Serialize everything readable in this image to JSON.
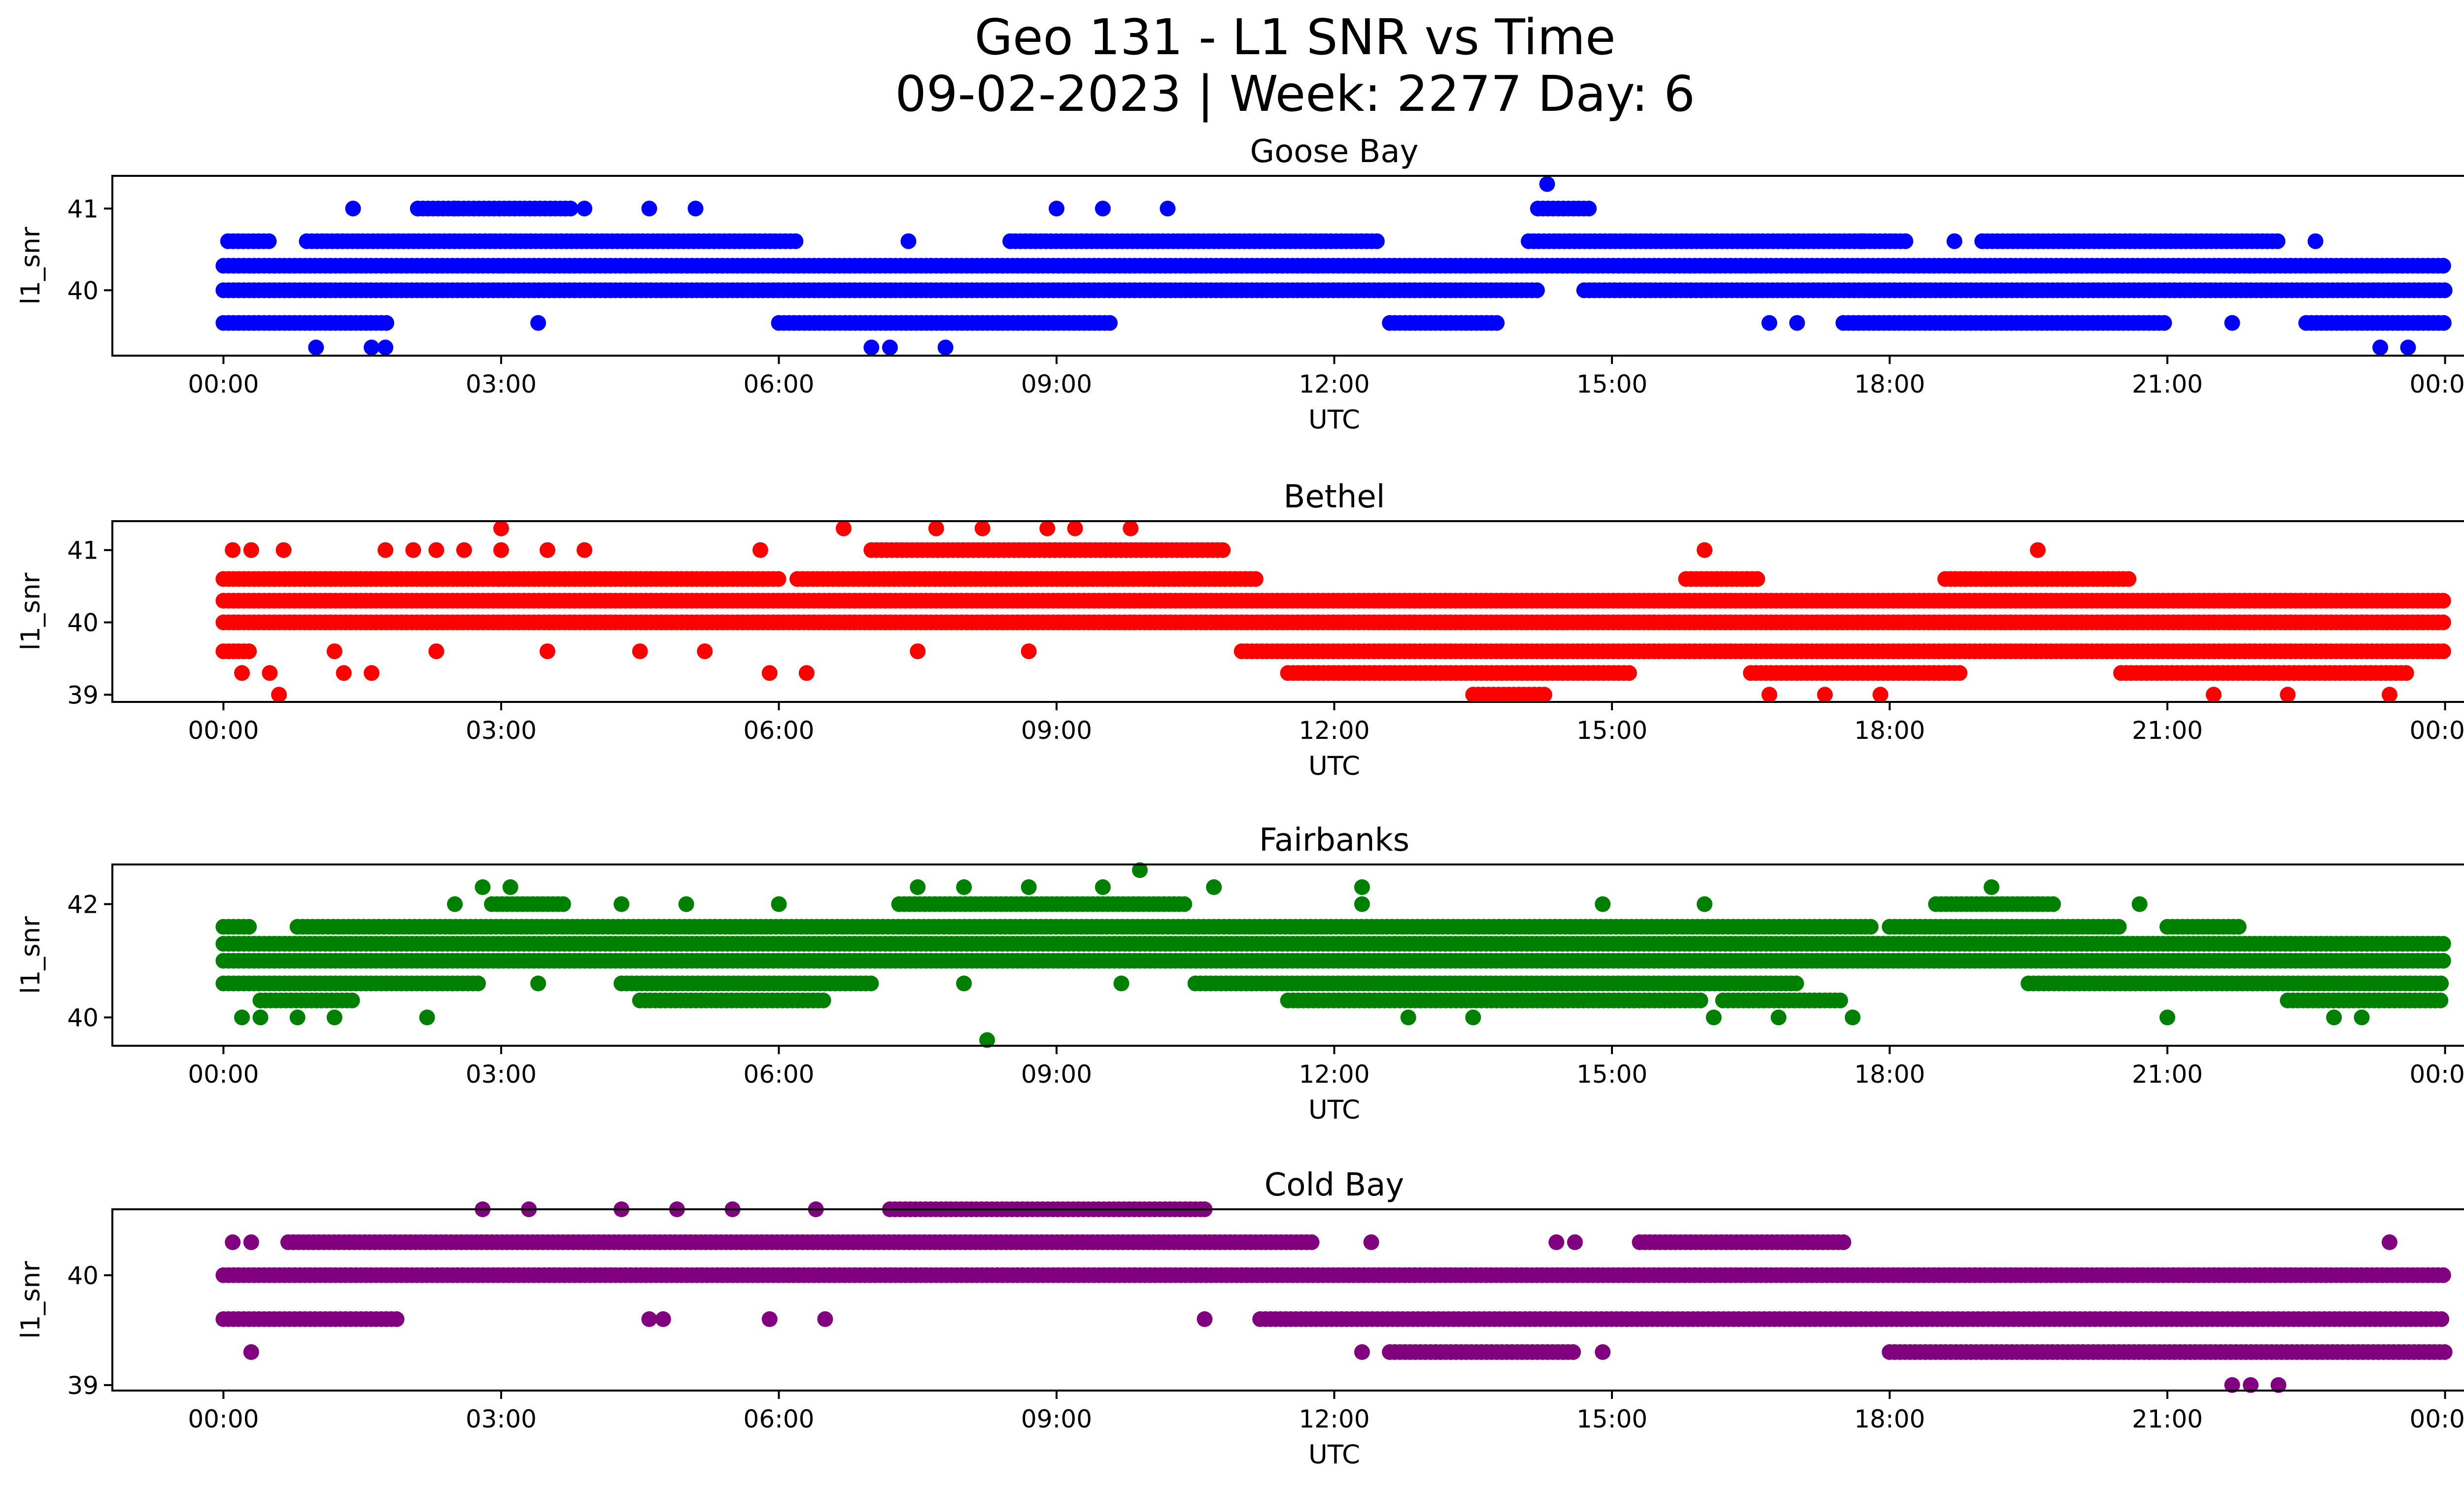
{
  "figure": {
    "title_line1": "Geo 131 - L1 SNR vs Time",
    "title_line2": "09-02-2023 | Week: 2277 Day: 6"
  },
  "chart_data": [
    {
      "type": "scatter",
      "title": "Goose Bay",
      "xlabel": "UTC",
      "ylabel": "l1_snr",
      "color": "#0000ff",
      "x_ticks": [
        "00:00",
        "03:00",
        "06:00",
        "09:00",
        "12:00",
        "15:00",
        "18:00",
        "21:00",
        "00:00"
      ],
      "x_range_hours": [
        -1.2,
        25.2
      ],
      "y_ticks": [
        40,
        41
      ],
      "ylim": [
        39.2,
        41.4
      ],
      "bands": [
        {
          "y": 40.3,
          "ranges": [
            [
              0,
              24
            ]
          ]
        },
        {
          "y": 40.0,
          "ranges": [
            [
              0,
              14.2
            ],
            [
              14.7,
              24
            ]
          ]
        },
        {
          "y": 40.6,
          "ranges": [
            [
              0.05,
              0.5
            ],
            [
              0.9,
              6.2
            ],
            [
              8.5,
              12.5
            ],
            [
              14.1,
              18.2
            ],
            [
              19.0,
              22.2
            ]
          ]
        },
        {
          "y": 39.6,
          "ranges": [
            [
              0,
              1.8
            ],
            [
              6,
              9.6
            ],
            [
              12.6,
              13.8
            ],
            [
              17.5,
              21.0
            ],
            [
              22.5,
              24
            ]
          ]
        },
        {
          "y": 41.0,
          "ranges": [
            [
              2.1,
              3.8
            ],
            [
              14.2,
              14.8
            ]
          ]
        }
      ],
      "points": [
        [
          1.4,
          41.0
        ],
        [
          2.1,
          41.0
        ],
        [
          2.5,
          41.0
        ],
        [
          3.9,
          41.0
        ],
        [
          4.6,
          41.0
        ],
        [
          5.1,
          41.0
        ],
        [
          9.0,
          41.0
        ],
        [
          9.5,
          41.0
        ],
        [
          10.2,
          41.0
        ],
        [
          14.3,
          41.3
        ],
        [
          7.4,
          40.6
        ],
        [
          16.9,
          40.6
        ],
        [
          17.7,
          40.6
        ],
        [
          18.7,
          40.6
        ],
        [
          22.6,
          40.6
        ],
        [
          3.4,
          39.6
        ],
        [
          9.3,
          39.6
        ],
        [
          16.7,
          39.6
        ],
        [
          17.0,
          39.6
        ],
        [
          21.7,
          39.6
        ],
        [
          1.0,
          39.3
        ],
        [
          1.6,
          39.3
        ],
        [
          1.75,
          39.3
        ],
        [
          7.0,
          39.3
        ],
        [
          7.2,
          39.3
        ],
        [
          7.8,
          39.3
        ],
        [
          23.3,
          39.3
        ],
        [
          23.6,
          39.3
        ]
      ]
    },
    {
      "type": "scatter",
      "title": "Bethel",
      "xlabel": "UTC",
      "ylabel": "l1_snr",
      "color": "#ff0000",
      "x_ticks": [
        "00:00",
        "03:00",
        "06:00",
        "09:00",
        "12:00",
        "15:00",
        "18:00",
        "21:00",
        "00:00"
      ],
      "x_range_hours": [
        -1.2,
        25.2
      ],
      "y_ticks": [
        39,
        40,
        41
      ],
      "ylim": [
        38.9,
        41.4
      ],
      "bands": [
        {
          "y": 40.3,
          "ranges": [
            [
              0,
              24
            ]
          ]
        },
        {
          "y": 40.0,
          "ranges": [
            [
              0,
              24
            ]
          ]
        },
        {
          "y": 40.6,
          "ranges": [
            [
              0,
              6.0
            ],
            [
              6.2,
              11.2
            ],
            [
              15.8,
              16.6
            ],
            [
              18.6,
              20.6
            ]
          ]
        },
        {
          "y": 39.6,
          "ranges": [
            [
              0,
              0.3
            ],
            [
              11.0,
              24
            ]
          ]
        },
        {
          "y": 39.3,
          "ranges": [
            [
              11.5,
              15.2
            ],
            [
              16.5,
              18.8
            ],
            [
              20.5,
              23.6
            ]
          ]
        },
        {
          "y": 41.0,
          "ranges": [
            [
              7.0,
              10.8
            ]
          ]
        },
        {
          "y": 39.0,
          "ranges": [
            [
              13.5,
              14.3
            ]
          ]
        }
      ],
      "points": [
        [
          0.1,
          41.0
        ],
        [
          0.3,
          41.0
        ],
        [
          0.65,
          41.0
        ],
        [
          1.75,
          41.0
        ],
        [
          2.05,
          41.0
        ],
        [
          2.3,
          41.0
        ],
        [
          2.6,
          41.0
        ],
        [
          3.0,
          41.0
        ],
        [
          3.5,
          41.0
        ],
        [
          3.9,
          41.0
        ],
        [
          5.8,
          41.0
        ],
        [
          16.0,
          41.0
        ],
        [
          19.6,
          41.0
        ],
        [
          3.0,
          41.3
        ],
        [
          6.7,
          41.3
        ],
        [
          7.7,
          41.3
        ],
        [
          8.2,
          41.3
        ],
        [
          8.9,
          41.3
        ],
        [
          9.2,
          41.3
        ],
        [
          9.8,
          41.3
        ],
        [
          1.2,
          39.6
        ],
        [
          2.3,
          39.6
        ],
        [
          3.5,
          39.6
        ],
        [
          4.5,
          39.6
        ],
        [
          5.2,
          39.6
        ],
        [
          7.5,
          39.6
        ],
        [
          8.7,
          39.6
        ],
        [
          0.2,
          39.3
        ],
        [
          0.5,
          39.3
        ],
        [
          1.3,
          39.3
        ],
        [
          1.6,
          39.3
        ],
        [
          5.9,
          39.3
        ],
        [
          6.3,
          39.3
        ],
        [
          0.6,
          39.0
        ],
        [
          16.7,
          39.0
        ],
        [
          17.3,
          39.0
        ],
        [
          17.9,
          39.0
        ],
        [
          21.5,
          39.0
        ],
        [
          22.3,
          39.0
        ],
        [
          23.4,
          39.0
        ]
      ]
    },
    {
      "type": "scatter",
      "title": "Fairbanks",
      "xlabel": "UTC",
      "ylabel": "l1_snr",
      "color": "#008000",
      "x_ticks": [
        "00:00",
        "03:00",
        "06:00",
        "09:00",
        "12:00",
        "15:00",
        "18:00",
        "21:00",
        "00:00"
      ],
      "x_range_hours": [
        -1.2,
        25.2
      ],
      "y_ticks": [
        40,
        42
      ],
      "ylim": [
        39.5,
        42.7
      ],
      "bands": [
        {
          "y": 41.3,
          "ranges": [
            [
              0,
              24
            ]
          ]
        },
        {
          "y": 41.0,
          "ranges": [
            [
              0,
              24
            ]
          ]
        },
        {
          "y": 41.6,
          "ranges": [
            [
              0,
              0.3
            ],
            [
              0.8,
              17.8
            ],
            [
              18.0,
              20.5
            ],
            [
              21.0,
              21.8
            ]
          ]
        },
        {
          "y": 40.6,
          "ranges": [
            [
              0,
              2.8
            ],
            [
              4.3,
              7.0
            ],
            [
              10.5,
              17.0
            ],
            [
              19.5,
              24
            ]
          ]
        },
        {
          "y": 40.3,
          "ranges": [
            [
              0.4,
              1.4
            ],
            [
              4.5,
              6.5
            ],
            [
              11.5,
              16.0
            ],
            [
              16.2,
              17.5
            ],
            [
              22.3,
              24
            ]
          ]
        },
        {
          "y": 42.0,
          "ranges": [
            [
              2.9,
              3.7
            ],
            [
              7.3,
              10.4
            ],
            [
              18.5,
              19.8
            ]
          ]
        }
      ],
      "points": [
        [
          2.5,
          42.0
        ],
        [
          4.3,
          42.0
        ],
        [
          5.0,
          42.0
        ],
        [
          6.0,
          42.0
        ],
        [
          12.3,
          42.0
        ],
        [
          14.9,
          42.0
        ],
        [
          16.0,
          42.0
        ],
        [
          20.7,
          42.0
        ],
        [
          2.8,
          42.3
        ],
        [
          3.1,
          42.3
        ],
        [
          7.5,
          42.3
        ],
        [
          8.0,
          42.3
        ],
        [
          8.7,
          42.3
        ],
        [
          9.5,
          42.3
        ],
        [
          10.7,
          42.3
        ],
        [
          12.3,
          42.3
        ],
        [
          19.1,
          42.3
        ],
        [
          9.9,
          42.6
        ],
        [
          3.4,
          40.6
        ],
        [
          8.0,
          40.6
        ],
        [
          9.7,
          40.6
        ],
        [
          0.2,
          40.0
        ],
        [
          0.4,
          40.0
        ],
        [
          0.8,
          40.0
        ],
        [
          1.2,
          40.0
        ],
        [
          2.2,
          40.0
        ],
        [
          12.8,
          40.0
        ],
        [
          13.5,
          40.0
        ],
        [
          16.1,
          40.0
        ],
        [
          16.8,
          40.0
        ],
        [
          17.6,
          40.0
        ],
        [
          21.0,
          40.0
        ],
        [
          22.8,
          40.0
        ],
        [
          23.1,
          40.0
        ],
        [
          8.25,
          39.6
        ]
      ]
    },
    {
      "type": "scatter",
      "title": "Cold Bay",
      "xlabel": "UTC",
      "ylabel": "l1_snr",
      "color": "#800080",
      "x_ticks": [
        "00:00",
        "03:00",
        "06:00",
        "09:00",
        "12:00",
        "15:00",
        "18:00",
        "21:00",
        "00:00"
      ],
      "x_range_hours": [
        -1.2,
        25.2
      ],
      "y_ticks": [
        39,
        40
      ],
      "ylim": [
        38.95,
        40.6
      ],
      "bands": [
        {
          "y": 40.0,
          "ranges": [
            [
              0,
              24
            ]
          ]
        },
        {
          "y": 40.3,
          "ranges": [
            [
              0.7,
              11.8
            ],
            [
              15.3,
              17.5
            ]
          ]
        },
        {
          "y": 39.6,
          "ranges": [
            [
              0,
              1.9
            ],
            [
              11.2,
              24
            ]
          ]
        },
        {
          "y": 39.3,
          "ranges": [
            [
              12.6,
              14.6
            ],
            [
              18.0,
              24
            ]
          ]
        },
        {
          "y": 40.6,
          "ranges": [
            [
              7.2,
              10.6
            ]
          ]
        }
      ],
      "points": [
        [
          0.1,
          40.3
        ],
        [
          0.3,
          40.3
        ],
        [
          12.4,
          40.3
        ],
        [
          14.4,
          40.3
        ],
        [
          14.6,
          40.3
        ],
        [
          23.4,
          40.3
        ],
        [
          2.8,
          40.6
        ],
        [
          3.3,
          40.6
        ],
        [
          4.3,
          40.6
        ],
        [
          4.9,
          40.6
        ],
        [
          5.5,
          40.6
        ],
        [
          6.4,
          40.6
        ],
        [
          10.6,
          40.6
        ],
        [
          0.3,
          39.3
        ],
        [
          12.3,
          39.3
        ],
        [
          14.9,
          39.3
        ],
        [
          4.6,
          39.6
        ],
        [
          4.75,
          39.6
        ],
        [
          5.9,
          39.6
        ],
        [
          6.5,
          39.6
        ],
        [
          10.6,
          39.6
        ],
        [
          21.7,
          39.0
        ],
        [
          21.9,
          39.0
        ],
        [
          22.2,
          39.0
        ]
      ]
    }
  ]
}
